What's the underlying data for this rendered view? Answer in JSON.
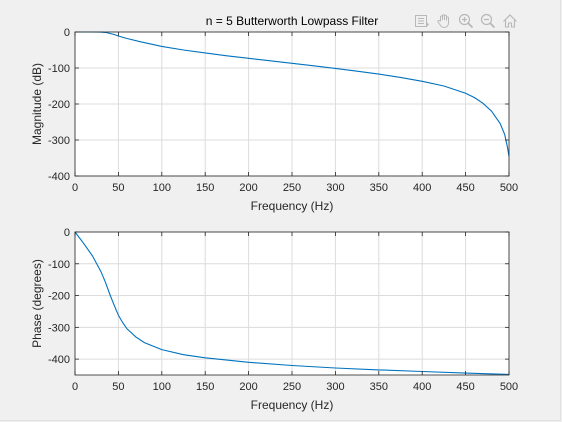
{
  "figure": {
    "background": "#f0f0f0",
    "axes_background": "#ffffff",
    "line_color": "#0072bd",
    "grid_color": "#dcdcdc"
  },
  "toolbar": {
    "icons": [
      "data-tips-icon",
      "pan-hand-icon",
      "zoom-in-icon",
      "zoom-out-icon",
      "restore-view-home-icon"
    ]
  },
  "chart_data": [
    {
      "type": "line",
      "title": "n = 5 Butterworth Lowpass Filter",
      "xlabel": "Frequency (Hz)",
      "ylabel": "Magnitude (dB)",
      "xlim": [
        0,
        500
      ],
      "ylim": [
        -400,
        0
      ],
      "xticks": [
        0,
        50,
        100,
        150,
        200,
        250,
        300,
        350,
        400,
        450,
        500
      ],
      "yticks": [
        -400,
        -300,
        -200,
        -100,
        0
      ],
      "grid": true,
      "series": [
        {
          "x": [
            0,
            10,
            20,
            30,
            35,
            40,
            45,
            50,
            60,
            75,
            100,
            125,
            150,
            175,
            200,
            225,
            250,
            275,
            300,
            325,
            350,
            375,
            400,
            425,
            450,
            460,
            470,
            480,
            490,
            495,
            498,
            500
          ],
          "y": [
            0,
            0,
            0,
            -0.3,
            -1,
            -4,
            -7,
            -11,
            -18,
            -27,
            -40,
            -50,
            -58,
            -66,
            -73,
            -80,
            -87,
            -94,
            -101,
            -109,
            -117,
            -126,
            -137,
            -150,
            -170,
            -182,
            -198,
            -220,
            -255,
            -285,
            -318,
            -345
          ]
        }
      ]
    },
    {
      "type": "line",
      "title": "",
      "xlabel": "Frequency (Hz)",
      "ylabel": "Phase (degrees)",
      "xlim": [
        0,
        500
      ],
      "ylim": [
        -450,
        0
      ],
      "xticks": [
        0,
        50,
        100,
        150,
        200,
        250,
        300,
        350,
        400,
        450,
        500
      ],
      "yticks": [
        -400,
        -300,
        -200,
        -100,
        0
      ],
      "grid": true,
      "series": [
        {
          "x": [
            0,
            10,
            20,
            30,
            35,
            40,
            45,
            50,
            55,
            60,
            70,
            80,
            100,
            125,
            150,
            200,
            250,
            300,
            350,
            400,
            450,
            500
          ],
          "y": [
            0,
            -36,
            -75,
            -125,
            -158,
            -195,
            -230,
            -262,
            -285,
            -305,
            -330,
            -348,
            -370,
            -386,
            -396,
            -410,
            -420,
            -428,
            -434,
            -439,
            -444,
            -448
          ]
        }
      ]
    }
  ]
}
